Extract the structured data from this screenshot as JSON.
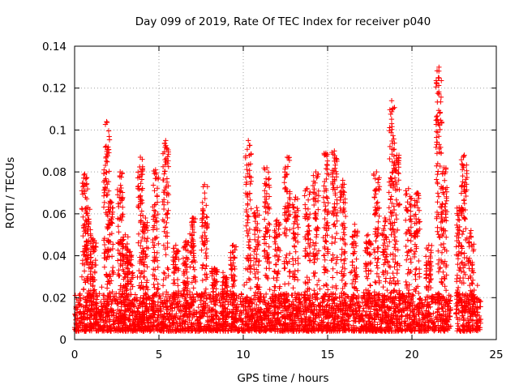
{
  "chart_data": {
    "type": "scatter",
    "title": "Day 099 of 2019, Rate Of TEC Index for receiver p040",
    "xlabel": "GPS time / hours",
    "ylabel": "ROTI / TECUs",
    "xlim": [
      0,
      25
    ],
    "ylim": [
      0,
      0.14
    ],
    "xticks": [
      0,
      5,
      10,
      15,
      20,
      25
    ],
    "xtick_labels": [
      "0",
      "5",
      "10",
      "15",
      "20",
      "25"
    ],
    "yticks": [
      0,
      0.02,
      0.04,
      0.06,
      0.08,
      0.1,
      0.12,
      0.14
    ],
    "ytick_labels": [
      "0",
      "0.02",
      "0.04",
      "0.06",
      "0.08",
      "0.1",
      "0.12",
      "0.14"
    ],
    "grid": true,
    "marker": "plus",
    "color": "#ff0000",
    "coverage": [
      [
        0,
        22.3
      ],
      [
        22.6,
        24.1
      ]
    ],
    "baseline_range": [
      0.004,
      0.022
    ],
    "spikes": [
      {
        "x": 0.6,
        "peak": 0.079
      },
      {
        "x": 0.8,
        "peak": 0.063
      },
      {
        "x": 1.1,
        "peak": 0.048
      },
      {
        "x": 1.9,
        "peak": 0.104
      },
      {
        "x": 2.1,
        "peak": 0.066
      },
      {
        "x": 2.7,
        "peak": 0.08
      },
      {
        "x": 3.0,
        "peak": 0.05
      },
      {
        "x": 3.3,
        "peak": 0.042
      },
      {
        "x": 3.9,
        "peak": 0.087
      },
      {
        "x": 4.2,
        "peak": 0.058
      },
      {
        "x": 4.8,
        "peak": 0.081
      },
      {
        "x": 5.4,
        "peak": 0.095
      },
      {
        "x": 6.0,
        "peak": 0.045
      },
      {
        "x": 6.6,
        "peak": 0.047
      },
      {
        "x": 7.0,
        "peak": 0.058
      },
      {
        "x": 7.7,
        "peak": 0.074
      },
      {
        "x": 8.3,
        "peak": 0.034
      },
      {
        "x": 8.9,
        "peak": 0.03
      },
      {
        "x": 9.4,
        "peak": 0.045
      },
      {
        "x": 10.3,
        "peak": 0.095
      },
      {
        "x": 10.8,
        "peak": 0.063
      },
      {
        "x": 11.4,
        "peak": 0.082
      },
      {
        "x": 12.0,
        "peak": 0.057
      },
      {
        "x": 12.6,
        "peak": 0.087
      },
      {
        "x": 13.1,
        "peak": 0.068
      },
      {
        "x": 13.8,
        "peak": 0.072
      },
      {
        "x": 14.3,
        "peak": 0.08
      },
      {
        "x": 14.9,
        "peak": 0.089
      },
      {
        "x": 15.4,
        "peak": 0.09
      },
      {
        "x": 15.9,
        "peak": 0.076
      },
      {
        "x": 16.6,
        "peak": 0.055
      },
      {
        "x": 17.4,
        "peak": 0.05
      },
      {
        "x": 17.9,
        "peak": 0.08
      },
      {
        "x": 18.4,
        "peak": 0.058
      },
      {
        "x": 18.8,
        "peak": 0.114
      },
      {
        "x": 19.1,
        "peak": 0.088
      },
      {
        "x": 19.8,
        "peak": 0.072
      },
      {
        "x": 20.3,
        "peak": 0.07
      },
      {
        "x": 21.0,
        "peak": 0.045
      },
      {
        "x": 21.6,
        "peak": 0.13
      },
      {
        "x": 21.9,
        "peak": 0.082
      },
      {
        "x": 22.8,
        "peak": 0.063
      },
      {
        "x": 23.1,
        "peak": 0.088
      },
      {
        "x": 23.5,
        "peak": 0.052
      }
    ]
  }
}
